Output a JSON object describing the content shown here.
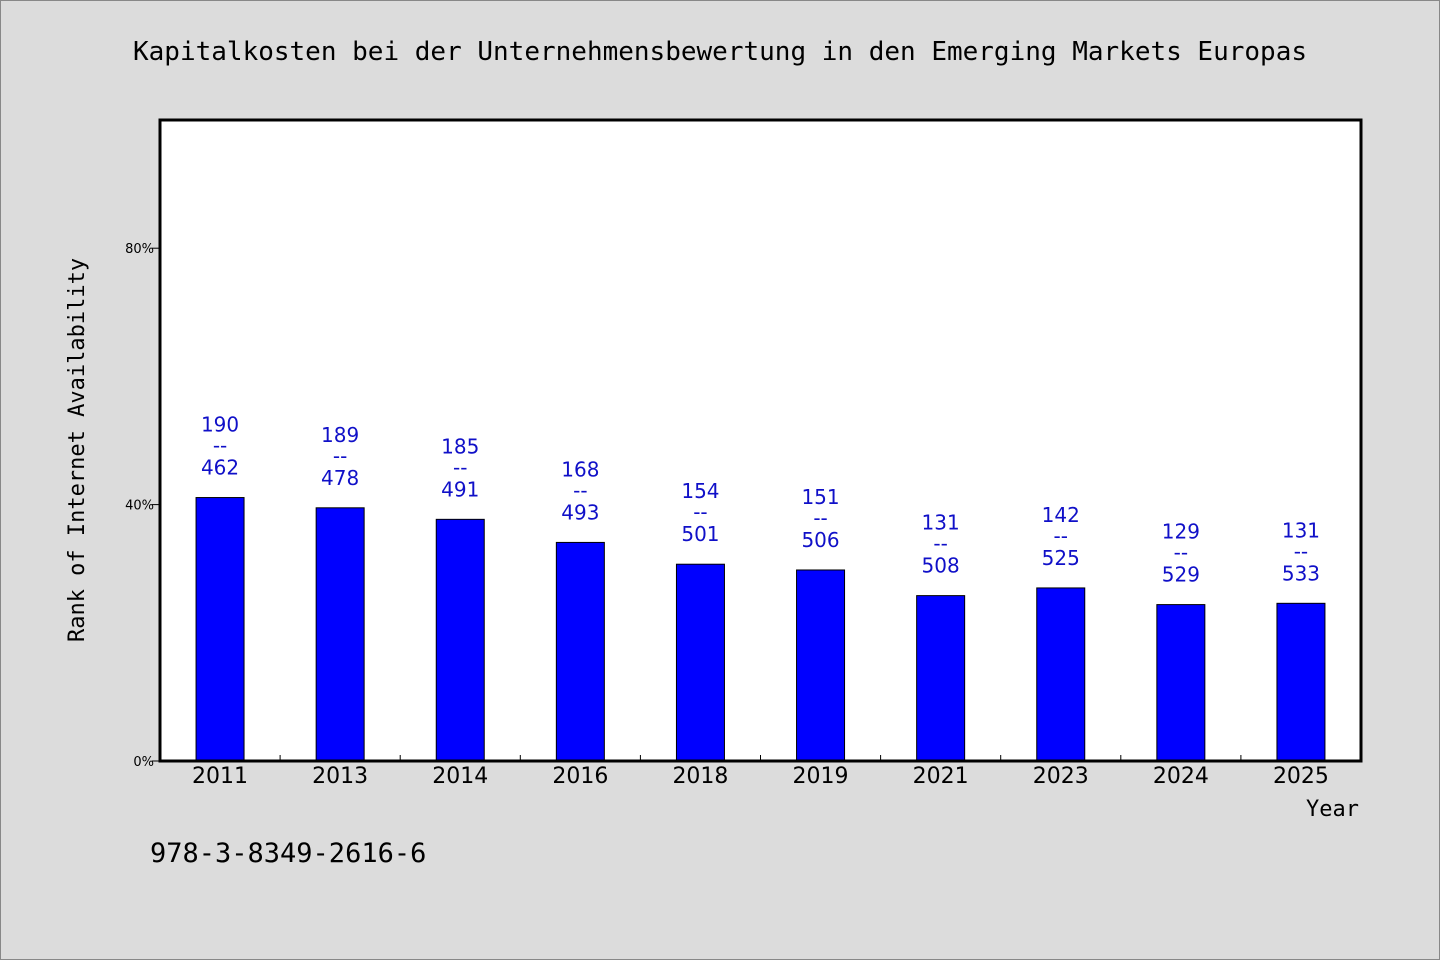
{
  "chart_data": {
    "type": "bar",
    "title": "Kapitalkosten bei der Unternehmensbewertung in den Emerging Markets Europas",
    "xlabel": "Year",
    "ylabel": "Rank of Internet Availability",
    "categories": [
      "2011",
      "2013",
      "2014",
      "2016",
      "2018",
      "2019",
      "2021",
      "2023",
      "2024",
      "2025"
    ],
    "values": [
      41.1,
      39.5,
      37.7,
      34.1,
      30.7,
      29.8,
      25.8,
      27.0,
      24.4,
      24.6
    ],
    "rank": [
      190,
      189,
      185,
      168,
      154,
      151,
      131,
      142,
      129,
      131
    ],
    "total": [
      462,
      478,
      491,
      493,
      501,
      506,
      508,
      525,
      529,
      533
    ],
    "label_separator": "--",
    "yticks": [
      "0%",
      "40%",
      "80%"
    ],
    "ytick_values": [
      0,
      40,
      80
    ],
    "ylim": [
      0,
      100
    ],
    "bar_color": "#0000ff",
    "label_color": "#1010c8",
    "grid": false
  },
  "footer": {
    "isbn": "978-3-8349-2616-6"
  }
}
